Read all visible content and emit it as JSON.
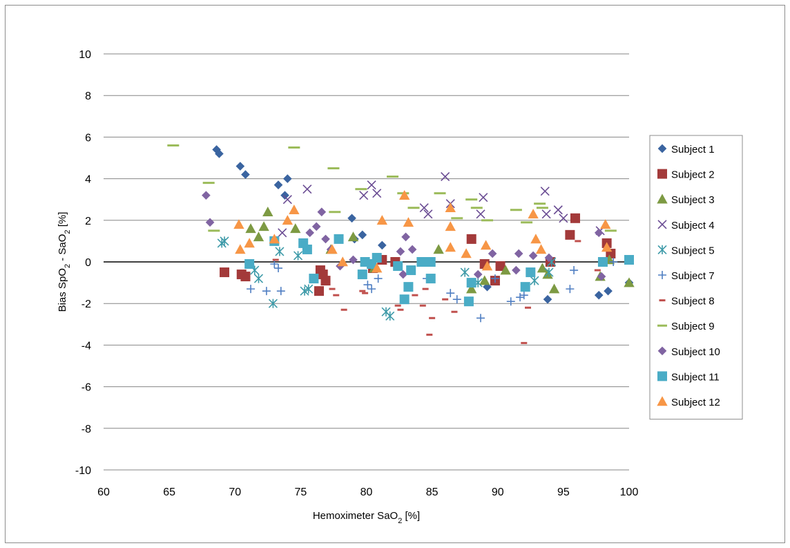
{
  "chart_data": {
    "type": "scatter",
    "title": "",
    "xlabel": "Hemoximeter SaO",
    "xlabel_sub": "2",
    "xlabel_unit": " [%]",
    "ylabel_parts": [
      "Bias SpO",
      "2",
      " - SaO",
      "2",
      " [%]"
    ],
    "xlim": [
      60,
      100
    ],
    "ylim": [
      -10,
      10
    ],
    "xticks": [
      60,
      65,
      70,
      75,
      80,
      85,
      90,
      95,
      100
    ],
    "yticks": [
      -10,
      -8,
      -6,
      -4,
      -2,
      0,
      2,
      4,
      6,
      8,
      10
    ],
    "grid": "horizontal",
    "legend_position": "right",
    "series": [
      {
        "name": "Subject 1",
        "marker": "diamond",
        "color": "#3a64a0",
        "points": [
          [
            68.6,
            5.4
          ],
          [
            68.8,
            5.2
          ],
          [
            70.4,
            4.6
          ],
          [
            70.8,
            4.2
          ],
          [
            73.3,
            3.7
          ],
          [
            73.8,
            3.2
          ],
          [
            74.0,
            4.0
          ],
          [
            78.9,
            2.1
          ],
          [
            79.1,
            1.1
          ],
          [
            79.7,
            1.3
          ],
          [
            81.2,
            0.8
          ],
          [
            89.2,
            -1.2
          ],
          [
            93.8,
            -1.8
          ],
          [
            97.7,
            -1.6
          ],
          [
            98.4,
            -1.4
          ],
          [
            100.0,
            -1.0
          ]
        ]
      },
      {
        "name": "Subject 2",
        "marker": "square",
        "color": "#a33a3a",
        "points": [
          [
            69.2,
            -0.5
          ],
          [
            70.5,
            -0.6
          ],
          [
            70.8,
            -0.7
          ],
          [
            76.4,
            -1.4
          ],
          [
            76.5,
            -0.4
          ],
          [
            76.7,
            -0.6
          ],
          [
            76.9,
            -0.9
          ],
          [
            80.5,
            -0.3
          ],
          [
            81.2,
            0.1
          ],
          [
            82.2,
            0.0
          ],
          [
            88.0,
            1.1
          ],
          [
            89.0,
            -0.1
          ],
          [
            89.8,
            -0.9
          ],
          [
            90.2,
            -0.2
          ],
          [
            94.0,
            0.0
          ],
          [
            95.5,
            1.3
          ],
          [
            95.9,
            2.1
          ],
          [
            98.3,
            0.9
          ],
          [
            98.6,
            0.4
          ]
        ]
      },
      {
        "name": "Subject 3",
        "marker": "triangle",
        "color": "#7d9a43",
        "points": [
          [
            71.2,
            1.6
          ],
          [
            71.8,
            1.2
          ],
          [
            72.2,
            1.7
          ],
          [
            72.5,
            2.4
          ],
          [
            74.6,
            1.6
          ],
          [
            77.3,
            0.6
          ],
          [
            79.0,
            1.2
          ],
          [
            80.6,
            -0.3
          ],
          [
            85.5,
            0.6
          ],
          [
            88.0,
            -1.3
          ],
          [
            89.0,
            -0.9
          ],
          [
            90.6,
            -0.4
          ],
          [
            93.4,
            -0.3
          ],
          [
            93.8,
            -0.6
          ],
          [
            94.3,
            -1.3
          ],
          [
            97.8,
            -0.7
          ],
          [
            98.5,
            0.1
          ],
          [
            100.0,
            -1.0
          ]
        ]
      },
      {
        "name": "Subject 4",
        "marker": "x",
        "color": "#6a4c93",
        "points": [
          [
            73.6,
            1.4
          ],
          [
            74.0,
            3.0
          ],
          [
            75.5,
            3.5
          ],
          [
            79.8,
            3.2
          ],
          [
            80.4,
            3.7
          ],
          [
            80.8,
            3.3
          ],
          [
            84.4,
            2.6
          ],
          [
            84.7,
            2.3
          ],
          [
            86.0,
            4.1
          ],
          [
            86.4,
            2.8
          ],
          [
            88.7,
            2.3
          ],
          [
            88.9,
            3.1
          ],
          [
            93.6,
            3.4
          ],
          [
            93.7,
            2.3
          ],
          [
            94.6,
            2.5
          ],
          [
            95.0,
            2.1
          ],
          [
            97.8,
            1.5
          ]
        ]
      },
      {
        "name": "Subject 5",
        "marker": "asterisk",
        "color": "#3d9aa8",
        "points": [
          [
            69.0,
            0.9
          ],
          [
            69.2,
            1.0
          ],
          [
            71.5,
            -0.4
          ],
          [
            71.8,
            -0.8
          ],
          [
            72.9,
            -2.0
          ],
          [
            73.4,
            0.5
          ],
          [
            74.8,
            0.3
          ],
          [
            75.3,
            -1.4
          ],
          [
            75.6,
            -1.3
          ],
          [
            81.5,
            -2.4
          ],
          [
            81.8,
            -2.6
          ],
          [
            87.5,
            -0.5
          ],
          [
            88.5,
            -1.0
          ],
          [
            92.8,
            -0.9
          ],
          [
            93.9,
            -0.5
          ],
          [
            94.1,
            0.0
          ]
        ]
      },
      {
        "name": "Subject 7",
        "marker": "plus",
        "color": "#4f7ec2",
        "points": [
          [
            71.2,
            -1.3
          ],
          [
            72.4,
            -1.4
          ],
          [
            73.0,
            -0.1
          ],
          [
            73.3,
            -0.3
          ],
          [
            73.5,
            -1.4
          ],
          [
            80.1,
            -1.1
          ],
          [
            80.4,
            -1.3
          ],
          [
            80.9,
            -0.8
          ],
          [
            84.6,
            -0.8
          ],
          [
            86.4,
            -1.5
          ],
          [
            86.9,
            -1.8
          ],
          [
            88.7,
            -2.7
          ],
          [
            89.8,
            -0.8
          ],
          [
            91.0,
            -1.9
          ],
          [
            91.7,
            -1.7
          ],
          [
            92.0,
            -1.6
          ],
          [
            95.5,
            -1.3
          ],
          [
            95.8,
            -0.4
          ],
          [
            98.8,
            0.0
          ]
        ]
      },
      {
        "name": "Subject 8",
        "marker": "dash",
        "color": "#c0504d",
        "points": [
          [
            73.1,
            0.1
          ],
          [
            77.4,
            -1.3
          ],
          [
            77.7,
            -1.6
          ],
          [
            78.3,
            -2.3
          ],
          [
            79.7,
            -1.4
          ],
          [
            79.9,
            -1.5
          ],
          [
            82.4,
            -2.1
          ],
          [
            82.6,
            -2.3
          ],
          [
            83.7,
            -1.6
          ],
          [
            84.3,
            -2.1
          ],
          [
            84.5,
            -1.3
          ],
          [
            84.8,
            -3.5
          ],
          [
            85.0,
            -2.7
          ],
          [
            86.0,
            -1.8
          ],
          [
            86.7,
            -2.4
          ],
          [
            92.0,
            -3.9
          ],
          [
            92.3,
            -2.2
          ],
          [
            96.1,
            1.0
          ],
          [
            97.6,
            -0.4
          ]
        ]
      },
      {
        "name": "Subject 9",
        "marker": "dash",
        "color": "#9bbb59",
        "points": [
          [
            65.3,
            5.6
          ],
          [
            68.0,
            3.8
          ],
          [
            68.4,
            1.5
          ],
          [
            74.5,
            5.5
          ],
          [
            77.5,
            4.5
          ],
          [
            77.6,
            2.4
          ],
          [
            79.6,
            3.5
          ],
          [
            82.0,
            4.1
          ],
          [
            82.8,
            3.3
          ],
          [
            83.6,
            2.6
          ],
          [
            85.6,
            3.3
          ],
          [
            86.9,
            2.1
          ],
          [
            88.0,
            3.0
          ],
          [
            88.4,
            2.6
          ],
          [
            89.2,
            2.0
          ],
          [
            91.4,
            2.5
          ],
          [
            92.2,
            1.9
          ],
          [
            93.2,
            2.8
          ],
          [
            93.4,
            2.6
          ],
          [
            98.6,
            1.5
          ]
        ]
      },
      {
        "name": "Subject 10",
        "marker": "diamond",
        "color": "#8064a2",
        "points": [
          [
            67.8,
            3.2
          ],
          [
            68.1,
            1.9
          ],
          [
            75.7,
            1.4
          ],
          [
            76.2,
            1.7
          ],
          [
            76.6,
            2.4
          ],
          [
            76.9,
            1.1
          ],
          [
            77.3,
            0.6
          ],
          [
            78.0,
            -0.2
          ],
          [
            79.0,
            0.1
          ],
          [
            82.6,
            0.5
          ],
          [
            82.8,
            -0.6
          ],
          [
            83.0,
            1.2
          ],
          [
            83.5,
            0.6
          ],
          [
            88.5,
            -0.6
          ],
          [
            89.6,
            0.4
          ],
          [
            91.4,
            -0.4
          ],
          [
            91.6,
            0.4
          ],
          [
            92.7,
            0.3
          ],
          [
            93.9,
            0.2
          ],
          [
            97.7,
            1.4
          ],
          [
            97.9,
            -0.7
          ]
        ]
      },
      {
        "name": "Subject 11",
        "marker": "square",
        "color": "#4aacc6",
        "points": [
          [
            71.1,
            -0.1
          ],
          [
            73.0,
            1.0
          ],
          [
            75.2,
            0.9
          ],
          [
            75.5,
            0.6
          ],
          [
            76.0,
            -0.8
          ],
          [
            77.9,
            1.1
          ],
          [
            79.7,
            -0.6
          ],
          [
            79.9,
            0.0
          ],
          [
            80.4,
            -0.1
          ],
          [
            80.8,
            0.2
          ],
          [
            82.4,
            -0.2
          ],
          [
            82.9,
            -1.8
          ],
          [
            83.2,
            -1.2
          ],
          [
            83.4,
            -0.4
          ],
          [
            84.2,
            0.0
          ],
          [
            84.9,
            0.0
          ],
          [
            84.9,
            -0.8
          ],
          [
            87.8,
            -1.9
          ],
          [
            88.0,
            -1.0
          ],
          [
            92.1,
            -1.2
          ],
          [
            92.5,
            -0.5
          ],
          [
            98.0,
            0.0
          ],
          [
            100.0,
            0.1
          ]
        ]
      },
      {
        "name": "Subject 12",
        "marker": "triangle",
        "color": "#f79646",
        "points": [
          [
            70.3,
            1.8
          ],
          [
            70.4,
            0.6
          ],
          [
            71.1,
            0.9
          ],
          [
            73.0,
            1.1
          ],
          [
            74.0,
            2.0
          ],
          [
            74.5,
            2.5
          ],
          [
            77.4,
            0.6
          ],
          [
            78.2,
            0.0
          ],
          [
            80.8,
            -0.3
          ],
          [
            81.2,
            2.0
          ],
          [
            82.9,
            3.2
          ],
          [
            83.2,
            1.9
          ],
          [
            86.4,
            2.6
          ],
          [
            86.4,
            1.7
          ],
          [
            86.4,
            0.7
          ],
          [
            87.6,
            0.4
          ],
          [
            89.1,
            0.8
          ],
          [
            89.2,
            -0.2
          ],
          [
            92.7,
            2.3
          ],
          [
            92.9,
            1.1
          ],
          [
            93.3,
            0.6
          ],
          [
            98.2,
            1.8
          ],
          [
            98.3,
            0.7
          ]
        ]
      }
    ]
  }
}
